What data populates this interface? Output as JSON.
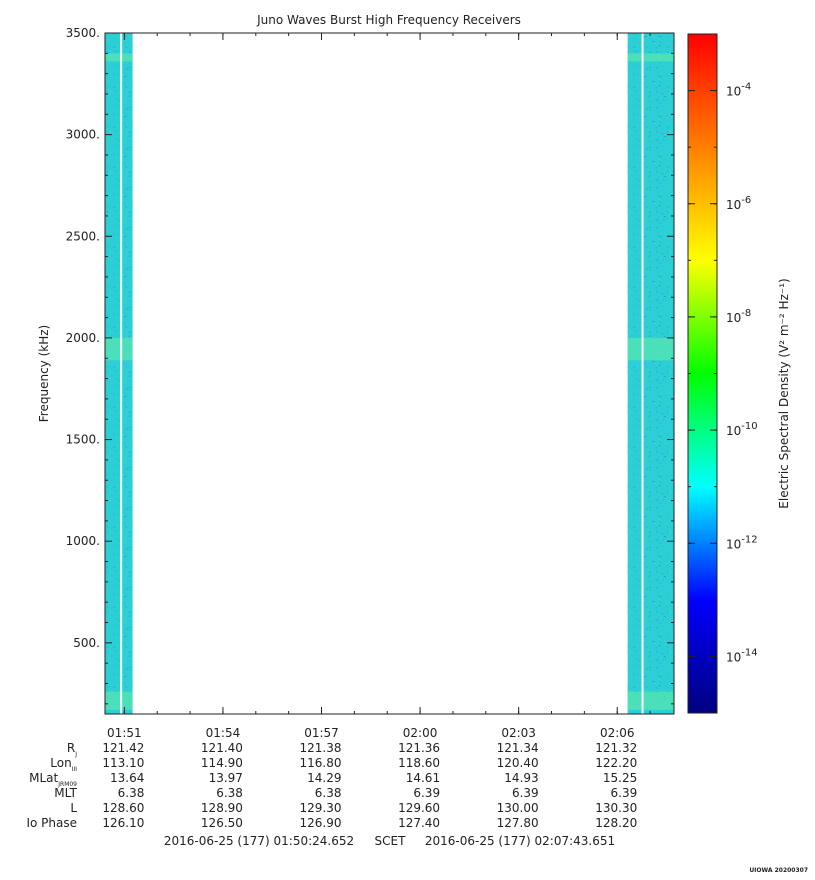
{
  "chart_data": {
    "type": "heatmap",
    "title": "Juno Waves Burst High Frequency Receivers",
    "ylabel": "Frequency (kHz)",
    "ylim": [
      150,
      3500
    ],
    "y_ticks": [
      {
        "value": 500,
        "label": "500."
      },
      {
        "value": 1000,
        "label": "1000."
      },
      {
        "value": 1500,
        "label": "1500."
      },
      {
        "value": 2000,
        "label": "2000."
      },
      {
        "value": 2500,
        "label": "2500."
      },
      {
        "value": 3000,
        "label": "3000."
      },
      {
        "value": 3500,
        "label": "3500."
      }
    ],
    "xlim": [
      "01:50:24.652",
      "02:07:43.651"
    ],
    "x_ticks": [
      "01:51",
      "01:54",
      "01:57",
      "02:00",
      "02:03",
      "02:06"
    ],
    "data_blocks": [
      {
        "start": "01:50:24.652",
        "end": "01:51:15"
      },
      {
        "start": "02:06:19",
        "end": "02:07:43.651"
      }
    ],
    "colorbar": {
      "label": "Electric Spectral Density (V² m⁻² Hz⁻¹)",
      "scale": "log",
      "range": [
        1e-15,
        0.001
      ],
      "tick_exponents": [
        "-4",
        "-6",
        "-8",
        "-10",
        "-12",
        "-14"
      ],
      "tick_base": "10",
      "colors": [
        "#000080",
        "#0000ff",
        "#00ffff",
        "#00ff00",
        "#ffff00",
        "#ff7f00",
        "#ff0000"
      ]
    },
    "ephemeris": {
      "rows": [
        {
          "label": "R",
          "sub": "J",
          "values": [
            "121.42",
            "121.40",
            "121.38",
            "121.36",
            "121.34",
            "121.32"
          ]
        },
        {
          "label": "Lon",
          "sub": "III",
          "values": [
            "113.10",
            "114.90",
            "116.80",
            "118.60",
            "120.40",
            "122.20"
          ]
        },
        {
          "label": "MLat",
          "sub": "JRM09",
          "values": [
            "13.64",
            "13.97",
            "14.29",
            "14.61",
            "14.93",
            "15.25"
          ]
        },
        {
          "label": "MLT",
          "sub": "",
          "values": [
            "6.38",
            "6.38",
            "6.38",
            "6.39",
            "6.39",
            "6.39"
          ]
        },
        {
          "label": "L",
          "sub": "",
          "values": [
            "128.60",
            "128.90",
            "129.30",
            "129.60",
            "130.00",
            "130.30"
          ]
        },
        {
          "label": "Io Phase",
          "sub": "",
          "values": [
            "126.10",
            "126.50",
            "126.90",
            "127.40",
            "127.80",
            "128.20"
          ]
        }
      ]
    },
    "time_range_start": "2016-06-25 (177) 01:50:24.652",
    "time_range_label": "SCET",
    "time_range_end": "2016-06-25 (177) 02:07:43.651",
    "credit": "UIOWA 20200307"
  }
}
